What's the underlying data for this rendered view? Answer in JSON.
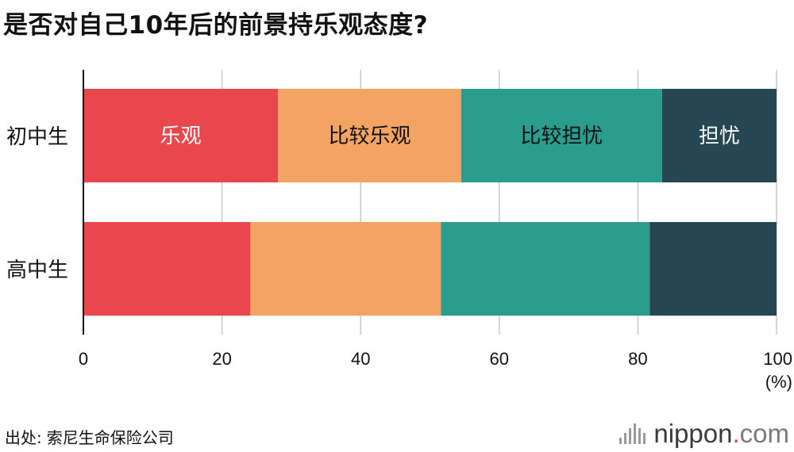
{
  "title": "是否对自己10年后的前景持乐观态度?",
  "source": {
    "label": "出处:",
    "value": "索尼生命保险公司"
  },
  "logo": {
    "name": "nippon",
    "dot": ".",
    "tld": "com"
  },
  "chart_data": {
    "type": "bar",
    "orientation": "horizontal",
    "stacked": true,
    "categories": [
      "初中生",
      "高中生"
    ],
    "series": [
      {
        "name": "乐观",
        "values": [
          28.1,
          24.1
        ],
        "color": "#e8474c",
        "label_color": "#ffffff"
      },
      {
        "name": "比较乐观",
        "values": [
          26.4,
          27.5
        ],
        "color": "#f3a462",
        "label_color": "#111111"
      },
      {
        "name": "比较担忧",
        "values": [
          29.0,
          30.1
        ],
        "color": "#2a9d8f",
        "label_color": "#111111"
      },
      {
        "name": "担忧",
        "values": [
          16.5,
          18.3
        ],
        "color": "#264653",
        "label_color": "#ffffff"
      }
    ],
    "xlim": [
      0,
      100
    ],
    "xticks": [
      0,
      20,
      40,
      60,
      80,
      100
    ],
    "xunit": "(%)",
    "grid": true
  }
}
